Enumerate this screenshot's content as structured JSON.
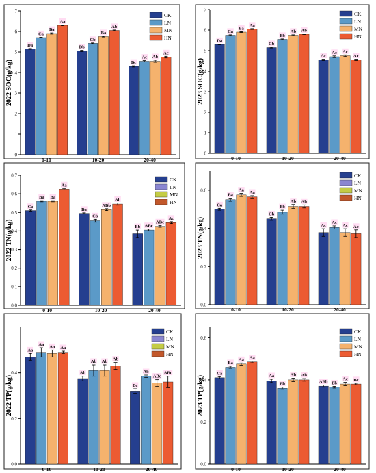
{
  "series_names": [
    "CK",
    "LN",
    "MN",
    "HN"
  ],
  "colors": {
    "CK": "#253f8f",
    "LN": "#5b9ac8",
    "MN": "#f5b26d",
    "HN": "#ec5b32",
    "legend_LN_alt": "#8a86d1",
    "legend_MN_alt": "#c4cc45",
    "legend_HN_alt": "#c2582b",
    "label_highlight": "#ffd6f0"
  },
  "chart_data": [
    {
      "type": "bar",
      "ylabel": "2022 SOC(g/kg)",
      "categories": [
        "0-10",
        "10-20",
        "20-40"
      ],
      "ylim": [
        0,
        7
      ],
      "yticks": [
        0,
        1,
        2,
        3,
        4,
        5,
        6,
        7
      ],
      "legend_style": "A",
      "series": [
        {
          "name": "CK",
          "values": [
            5.15,
            5.05,
            4.3
          ],
          "err": [
            0.02,
            0.03,
            0.03
          ],
          "labels": [
            "Da",
            "Db",
            "Bc"
          ]
        },
        {
          "name": "LN",
          "values": [
            5.7,
            5.42,
            4.55
          ],
          "err": [
            0.02,
            0.02,
            0.03
          ],
          "labels": [
            "Ca",
            "Cb",
            "Ac"
          ]
        },
        {
          "name": "MN",
          "values": [
            5.9,
            5.75,
            4.55
          ],
          "err": [
            0.03,
            0.02,
            0.05
          ],
          "labels": [
            "Ba",
            "Ba",
            "Ab"
          ]
        },
        {
          "name": "HN",
          "values": [
            6.3,
            6.05,
            4.75
          ],
          "err": [
            0.02,
            0.02,
            0.04
          ],
          "labels": [
            "Aa",
            "Ab",
            "Ac"
          ]
        }
      ]
    },
    {
      "type": "bar",
      "ylabel": "2023 SOC(g/kg)",
      "categories": [
        "0-10",
        "10-20",
        "20-40"
      ],
      "ylim": [
        0,
        7
      ],
      "yticks": [
        0,
        1,
        2,
        3,
        4,
        5,
        6,
        7
      ],
      "legend_style": "A",
      "series": [
        {
          "name": "CK",
          "values": [
            5.3,
            5.15,
            4.55
          ],
          "err": [
            0.02,
            0.02,
            0.03
          ],
          "labels": [
            "Da",
            "Cb",
            "Ac"
          ]
        },
        {
          "name": "LN",
          "values": [
            5.75,
            5.55,
            4.7
          ],
          "err": [
            0.02,
            0.02,
            0.04
          ],
          "labels": [
            "Ca",
            "Bb",
            "Ac"
          ]
        },
        {
          "name": "MN",
          "values": [
            5.9,
            5.75,
            4.75
          ],
          "err": [
            0.02,
            0.02,
            0.04
          ],
          "labels": [
            "Ba",
            "Ab",
            "Ac"
          ]
        },
        {
          "name": "HN",
          "values": [
            6.05,
            5.8,
            4.55
          ],
          "err": [
            0.02,
            0.02,
            0.03
          ],
          "labels": [
            "Aa",
            "Ab",
            "Ac"
          ]
        }
      ]
    },
    {
      "type": "bar",
      "ylabel": "2022 TN(g/kg)",
      "categories": [
        "0-10",
        "10-20",
        "20-40"
      ],
      "ylim": [
        0,
        0.7
      ],
      "yticks": [
        0.0,
        0.1,
        0.2,
        0.3,
        0.4,
        0.5,
        0.6,
        0.7
      ],
      "legend_style": "B",
      "series": [
        {
          "name": "CK",
          "values": [
            0.51,
            0.495,
            0.385
          ],
          "err": [
            0.003,
            0.003,
            0.02
          ],
          "labels": [
            "Ca",
            "Ba",
            "Bb"
          ]
        },
        {
          "name": "LN",
          "values": [
            0.56,
            0.455,
            0.405
          ],
          "err": [
            0.003,
            0.008,
            0.005
          ],
          "labels": [
            "Ba",
            "Cb",
            "ABc"
          ]
        },
        {
          "name": "MN",
          "values": [
            0.56,
            0.515,
            0.425
          ],
          "err": [
            0.003,
            0.005,
            0.005
          ],
          "labels": [
            "Ba",
            "ABb",
            "ABc"
          ]
        },
        {
          "name": "HN",
          "values": [
            0.625,
            0.545,
            0.445
          ],
          "err": [
            0.004,
            0.006,
            0.005
          ],
          "labels": [
            "Aa",
            "Ab",
            "Ac"
          ]
        }
      ]
    },
    {
      "type": "bar",
      "ylabel": "2023 TN(g/kg)",
      "categories": [
        "0-10",
        "10-20",
        "20-40"
      ],
      "ylim": [
        0,
        0.7
      ],
      "yticks": [
        0.0,
        0.2,
        0.4,
        0.6
      ],
      "legend_style": "B",
      "series": [
        {
          "name": "CK",
          "values": [
            0.5,
            0.45,
            0.378
          ],
          "err": [
            0.005,
            0.008,
            0.02
          ],
          "labels": [
            "Ca",
            "Cb",
            "Ac"
          ]
        },
        {
          "name": "LN",
          "values": [
            0.55,
            0.485,
            0.405
          ],
          "err": [
            0.008,
            0.01,
            0.008
          ],
          "labels": [
            "Ba",
            "Bb",
            "Ac"
          ]
        },
        {
          "name": "MN",
          "values": [
            0.575,
            0.515,
            0.378
          ],
          "err": [
            0.008,
            0.01,
            0.02
          ],
          "labels": [
            "Aa",
            "Ab",
            "Ac"
          ]
        },
        {
          "name": "HN",
          "values": [
            0.565,
            0.515,
            0.372
          ],
          "err": [
            0.006,
            0.008,
            0.02
          ],
          "labels": [
            "Aa",
            "Ab",
            "Ac"
          ]
        }
      ]
    },
    {
      "type": "bar",
      "ylabel": "2022 TP(g/kg)",
      "categories": [
        "0-10",
        "10-20",
        "20-40"
      ],
      "ylim": [
        0,
        0.6
      ],
      "yticks": [
        0.0,
        0.2,
        0.4
      ],
      "legend_style": "B",
      "series": [
        {
          "name": "CK",
          "values": [
            0.47,
            0.375,
            0.32
          ],
          "err": [
            0.015,
            0.01,
            0.01
          ],
          "labels": [
            "Aa",
            "Ab",
            "Bc"
          ]
        },
        {
          "name": "LN",
          "values": [
            0.49,
            0.41,
            0.385
          ],
          "err": [
            0.02,
            0.025,
            0.005
          ],
          "labels": [
            "Aa",
            "Ab",
            "Ab"
          ]
        },
        {
          "name": "MN",
          "values": [
            0.485,
            0.41,
            0.355
          ],
          "err": [
            0.015,
            0.025,
            0.015
          ],
          "labels": [
            "Aa",
            "Ab",
            "ABc"
          ]
        },
        {
          "name": "HN",
          "values": [
            0.49,
            0.43,
            0.36
          ],
          "err": [
            0.005,
            0.015,
            0.025
          ],
          "labels": [
            "Aa",
            "Ab",
            "ABc"
          ]
        }
      ]
    },
    {
      "type": "bar",
      "ylabel": "2023 TP(g/kg)",
      "categories": [
        "0-10",
        "10-20",
        "20-40"
      ],
      "ylim": [
        0,
        0.65
      ],
      "yticks": [
        0.0,
        0.2,
        0.4,
        0.6
      ],
      "legend_style": "A",
      "series": [
        {
          "name": "CK",
          "values": [
            0.41,
            0.395,
            0.37
          ],
          "err": [
            0.005,
            0.008,
            0.005
          ],
          "labels": [
            "Ca",
            "Aa",
            "ABb"
          ]
        },
        {
          "name": "LN",
          "values": [
            0.46,
            0.36,
            0.365
          ],
          "err": [
            0.005,
            0.005,
            0.004
          ],
          "labels": [
            "Ba",
            "Bb",
            "Bb"
          ]
        },
        {
          "name": "MN",
          "values": [
            0.475,
            0.4,
            0.38
          ],
          "err": [
            0.005,
            0.008,
            0.008
          ],
          "labels": [
            "Aa",
            "Ab",
            "Ac"
          ]
        },
        {
          "name": "HN",
          "values": [
            0.485,
            0.4,
            0.38
          ],
          "err": [
            0.004,
            0.006,
            0.004
          ],
          "labels": [
            "Aa",
            "Ab",
            "Bc"
          ]
        }
      ]
    }
  ]
}
